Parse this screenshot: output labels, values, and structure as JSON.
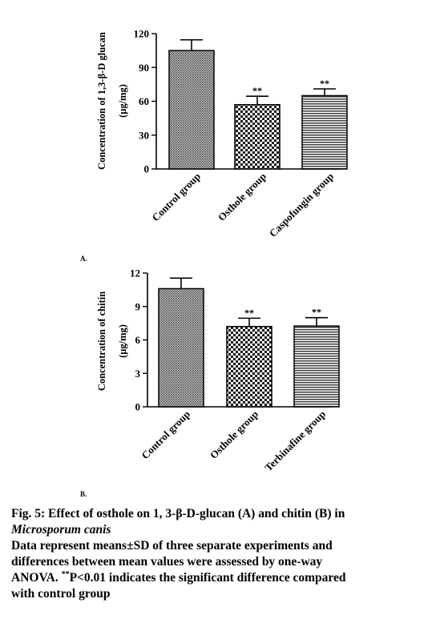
{
  "chart_data": [
    {
      "type": "bar",
      "panel_label": "A.",
      "categories": [
        "Control group",
        "Osthole group",
        "Caspofungin group"
      ],
      "values": [
        105,
        57,
        65
      ],
      "errors": [
        9.5,
        7.5,
        6.0
      ],
      "significance": [
        "",
        "**",
        "**"
      ],
      "ylabel_line1": "Concentration of 1,3-β-D glucan",
      "ylabel_line2": "(μg/mg)",
      "ylim": [
        0,
        120
      ],
      "yticks": [
        0,
        30,
        60,
        90,
        120
      ],
      "ytick_labels": [
        "0",
        "30",
        "60",
        "90",
        "120"
      ],
      "patterns": [
        "fine-dots",
        "checker",
        "horizontal-stripes"
      ],
      "grid": false
    },
    {
      "type": "bar",
      "panel_label": "B.",
      "categories": [
        "Control group",
        "Osthole group",
        "Terbinafine group"
      ],
      "values": [
        10.6,
        7.2,
        7.25
      ],
      "errors": [
        0.95,
        0.75,
        0.75
      ],
      "significance": [
        "",
        "**",
        "**"
      ],
      "ylabel_line1": "Concentration of chitin",
      "ylabel_line2": "(μg/mg)",
      "ylim": [
        0,
        12
      ],
      "yticks": [
        0,
        3,
        6,
        9,
        12
      ],
      "ytick_labels": [
        "0",
        "3",
        "6",
        "9",
        "12"
      ],
      "patterns": [
        "fine-dots",
        "checker",
        "horizontal-stripes"
      ],
      "grid": false
    }
  ],
  "caption": {
    "title": "Fig. 5: Effect of osthole on 1, 3-β-D-glucan (A) and chitin (B) in",
    "title_italic": "Microsporum canis",
    "body_line1": "Data represent means±SD of three separate experiments and",
    "body_line2": "differences between mean values were assessed by one-way",
    "body_line3_pre": "ANOVA. ",
    "body_line3_sup": "**",
    "body_line3_post": "P<0.01 indicates the significant difference compared",
    "body_line4": "with control group"
  }
}
